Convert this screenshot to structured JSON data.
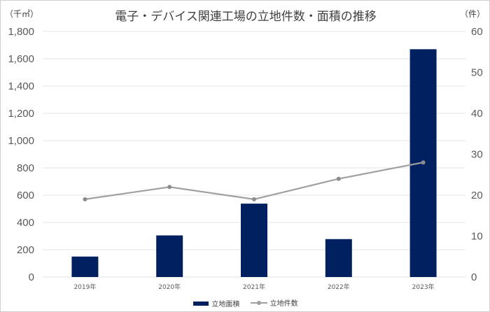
{
  "chart_data": {
    "type": "bar+line",
    "title": "電子・デバイス関連工場の立地件数・面積の推移",
    "ylabel_left": "（千㎡）",
    "ylabel_right": "（件）",
    "categories": [
      "2019年",
      "2020年",
      "2021年",
      "2022年",
      "2023年"
    ],
    "ylim_left": [
      0,
      1800
    ],
    "yticks_left": [
      "0",
      "200",
      "400",
      "600",
      "800",
      "1,000",
      "1,200",
      "1,400",
      "1,600",
      "1,800"
    ],
    "ylim_right": [
      0,
      60
    ],
    "yticks_right": [
      "0",
      "10",
      "20",
      "30",
      "40",
      "50",
      "60"
    ],
    "grid": true,
    "legend_position": "bottom",
    "series": [
      {
        "name": "立地面積",
        "type": "bar",
        "axis": "left",
        "color": "#002060",
        "values": [
          150,
          305,
          538,
          278,
          1670
        ]
      },
      {
        "name": "立地件数",
        "type": "line",
        "axis": "right",
        "color": "#a0a0a0",
        "values": [
          19,
          22,
          19,
          24,
          28
        ]
      }
    ]
  }
}
